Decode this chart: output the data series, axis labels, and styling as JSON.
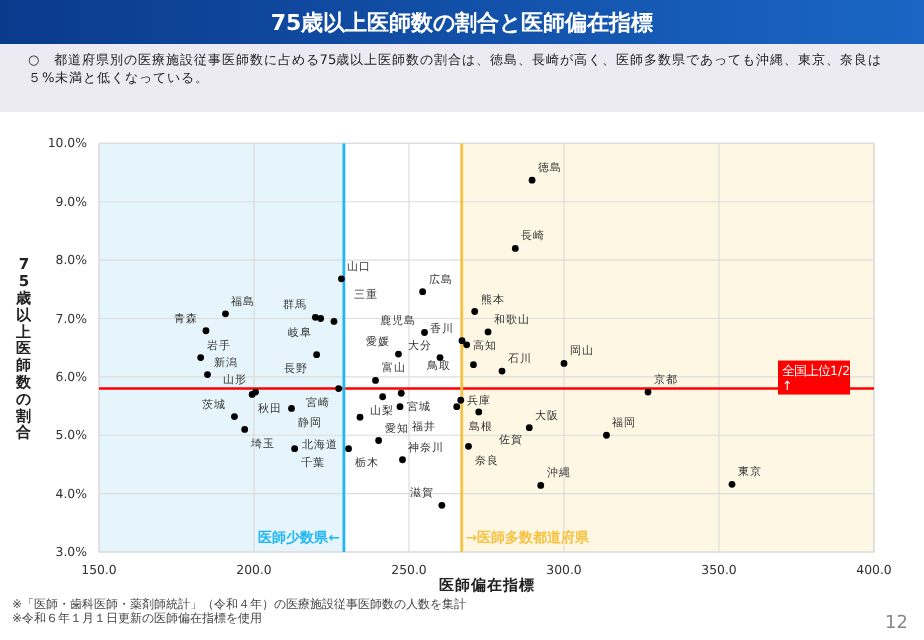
{
  "chart_data": {
    "type": "scatter",
    "title": "75歳以上医師数の割合と医師偏在指標",
    "subtitle": "○　都道府県別の医療施設従事医師数に占める75歳以上医師数の割合は、徳島、長崎が高く、医師多数県であっても沖縄、東京、奈良は５%未満と低くなっている。",
    "xlabel": "医師偏在指標",
    "ylabel": "75歳以上医師数の割合",
    "series": [
      {
        "color": "#000000",
        "x": [
          228.2,
          190.8,
          184.5,
          219.8,
          221.5,
          225.8,
          220.2,
          182.8,
          185.0,
          254.4,
          271.2,
          255.0,
          275.5,
          267.1,
          268.6,
          246.6,
          260.0,
          270.8,
          289.7,
          284.3,
          300.0,
          280.0,
          199.4,
          200.5,
          227.3,
          239.2,
          241.5,
          247.5,
          247.1,
          266.7,
          265.4,
          272.5,
          193.7,
          212.1,
          197.0,
          234.2,
          240.2,
          269.2,
          213.1,
          230.5,
          247.9,
          260.6,
          327.1,
          288.8,
          313.7,
          292.5,
          354.2
        ],
        "values": [
          7.68,
          7.08,
          6.79,
          7.02,
          7.0,
          6.95,
          6.38,
          6.33,
          6.04,
          7.46,
          7.12,
          6.76,
          6.77,
          6.62,
          6.55,
          6.39,
          6.33,
          6.21,
          9.37,
          8.2,
          6.23,
          6.1,
          5.7,
          5.74,
          5.8,
          5.94,
          5.66,
          5.72,
          5.49,
          5.6,
          5.49,
          5.4,
          5.32,
          5.46,
          5.1,
          5.31,
          4.91,
          4.81,
          4.77,
          4.77,
          4.58,
          3.8,
          5.74,
          5.13,
          5.0,
          4.14,
          4.16
        ]
      }
    ],
    "annotations": [
      {
        "text": "山口",
        "x": 228.2,
        "y": 7.68
      },
      {
        "text": "福島",
        "x": 190.8,
        "y": 7.08
      },
      {
        "text": "青森",
        "x": 184.5,
        "y": 6.79
      },
      {
        "text": "群馬",
        "x": 219.8,
        "y": 7.02
      },
      {
        "text": "岐阜",
        "x": 221.5,
        "y": 7.0
      },
      {
        "text": "三重",
        "x": 225.8,
        "y": 6.95
      },
      {
        "text": "長野",
        "x": 220.2,
        "y": 6.38
      },
      {
        "text": "岩手",
        "x": 182.8,
        "y": 6.33
      },
      {
        "text": "新潟",
        "x": 185.0,
        "y": 6.04
      },
      {
        "text": "広島",
        "x": 254.4,
        "y": 7.46
      },
      {
        "text": "熊本",
        "x": 271.2,
        "y": 7.12
      },
      {
        "text": "鹿児島",
        "x": 255.0,
        "y": 6.76
      },
      {
        "text": "和歌山",
        "x": 275.5,
        "y": 6.77
      },
      {
        "text": "香川",
        "x": 267.1,
        "y": 6.62
      },
      {
        "text": "高知",
        "x": 268.6,
        "y": 6.55
      },
      {
        "text": "愛媛",
        "x": 246.6,
        "y": 6.39
      },
      {
        "text": "大分",
        "x": 260.0,
        "y": 6.33
      },
      {
        "text": "鳥取",
        "x": 270.8,
        "y": 6.21
      },
      {
        "text": "徳島",
        "x": 289.7,
        "y": 9.37
      },
      {
        "text": "長崎",
        "x": 284.3,
        "y": 8.2
      },
      {
        "text": "岡山",
        "x": 300.0,
        "y": 6.23
      },
      {
        "text": "石川",
        "x": 280.0,
        "y": 6.1
      },
      {
        "text": "秋田",
        "x": 199.4,
        "y": 5.7
      },
      {
        "text": "山形",
        "x": 200.5,
        "y": 5.74
      },
      {
        "text": "宮崎",
        "x": 227.3,
        "y": 5.8
      },
      {
        "text": "富山",
        "x": 239.2,
        "y": 5.94
      },
      {
        "text": "山梨",
        "x": 241.5,
        "y": 5.66
      },
      {
        "text": "宮城",
        "x": 247.5,
        "y": 5.72
      },
      {
        "text": "福井",
        "x": 247.1,
        "y": 5.49
      },
      {
        "text": "兵庫",
        "x": 266.7,
        "y": 5.6
      },
      {
        "text": "島根",
        "x": 265.4,
        "y": 5.49
      },
      {
        "text": "佐賀",
        "x": 272.5,
        "y": 5.4
      },
      {
        "text": "茨城",
        "x": 193.7,
        "y": 5.32
      },
      {
        "text": "静岡",
        "x": 212.1,
        "y": 5.46
      },
      {
        "text": "埼玉",
        "x": 197.0,
        "y": 5.1
      },
      {
        "text": "北海道",
        "x": 234.2,
        "y": 5.31
      },
      {
        "text": "愛知",
        "x": 240.2,
        "y": 4.91
      },
      {
        "text": "奈良",
        "x": 269.2,
        "y": 4.81
      },
      {
        "text": "千葉",
        "x": 213.1,
        "y": 4.77
      },
      {
        "text": "栃木",
        "x": 230.5,
        "y": 4.77
      },
      {
        "text": "神奈川",
        "x": 247.9,
        "y": 4.58
      },
      {
        "text": "滋賀",
        "x": 260.6,
        "y": 3.8
      },
      {
        "text": "京都",
        "x": 327.1,
        "y": 5.74
      },
      {
        "text": "大阪",
        "x": 288.8,
        "y": 5.13
      },
      {
        "text": "福岡",
        "x": 313.7,
        "y": 5.0
      },
      {
        "text": "沖縄",
        "x": 292.5,
        "y": 4.14
      },
      {
        "text": "東京",
        "x": 354.2,
        "y": 4.16
      },
      "※「医師・歯科医師・薬剤師統計」（令和４年）の医療施設従事医師数の人数を集計",
      "※令和６年１月１日更新の医師偏在指標を使用",
      "12"
    ],
    "xlim": [
      150,
      400
    ],
    "xticks": [
      {
        "value": 150,
        "label": "150.0"
      },
      {
        "value": 200,
        "label": "200.0"
      },
      {
        "value": 250,
        "label": "250.0"
      },
      {
        "value": 300,
        "label": "300.0"
      },
      {
        "value": 350,
        "label": "350.0"
      },
      {
        "value": 400,
        "label": "400.0"
      }
    ],
    "ylim": [
      3,
      10
    ],
    "yticks": [
      {
        "value": 3,
        "label": "3.0%"
      },
      {
        "value": 4,
        "label": "4.0%"
      },
      {
        "value": 5,
        "label": "5.0%"
      },
      {
        "value": 6,
        "label": "6.0%"
      },
      {
        "value": 7,
        "label": "7.0%"
      },
      {
        "value": 8,
        "label": "8.0%"
      },
      {
        "value": 9,
        "label": "9.0%"
      },
      {
        "value": 10,
        "label": "10.0%"
      }
    ],
    "ref_lines": [
      {
        "axis": "y",
        "value": 5.8,
        "label": "全国上位1/2 ↑",
        "color": "#ff0000"
      },
      {
        "axis": "x",
        "value": 229,
        "label": "医師少数県←",
        "color": "#1fb6f2"
      },
      {
        "axis": "x",
        "value": 267,
        "label": "→医師多数都道府県",
        "color": "#f7c242"
      }
    ],
    "bands": [
      {
        "axis": "x",
        "from": 150,
        "to": 229,
        "color": "#e6f5fb"
      },
      {
        "axis": "x",
        "from": 267,
        "to": 400,
        "color": "#fdf7e3"
      }
    ],
    "grid": true,
    "marker": "circle"
  }
}
